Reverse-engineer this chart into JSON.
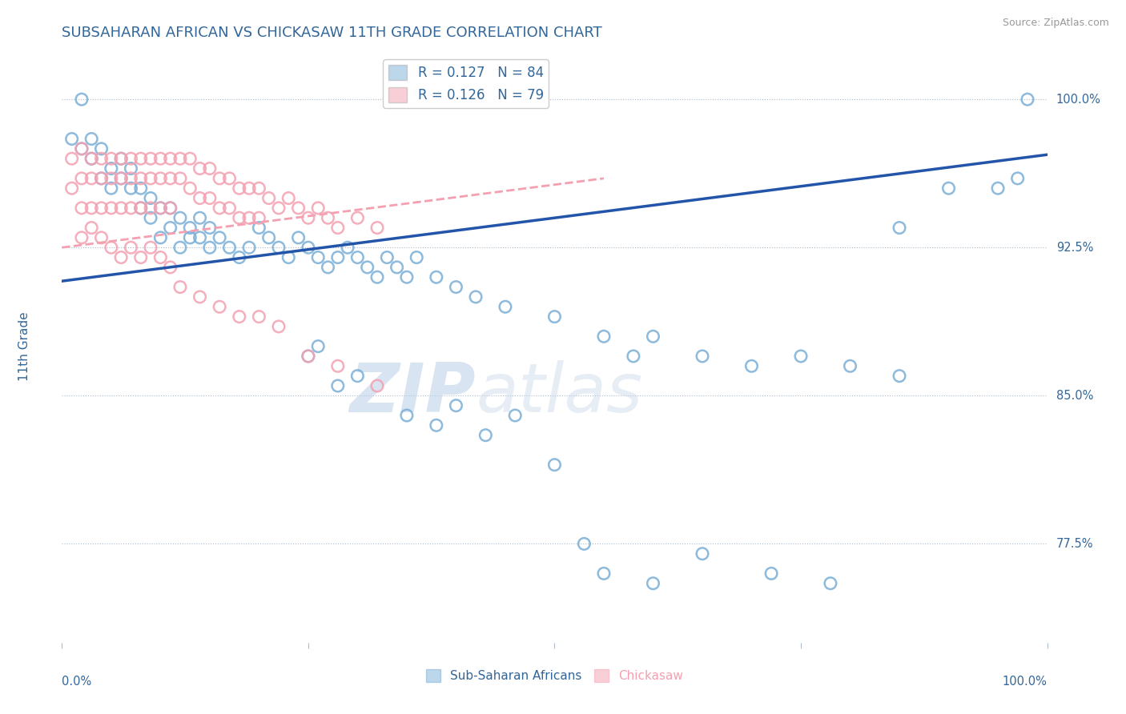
{
  "title": "SUBSAHARAN AFRICAN VS CHICKASAW 11TH GRADE CORRELATION CHART",
  "source": "Source: ZipAtlas.com",
  "ylabel": "11th Grade",
  "xlim": [
    0.0,
    1.0
  ],
  "ylim": [
    0.725,
    1.025
  ],
  "blue_color": "#7aaed6",
  "pink_color": "#f4a0b0",
  "title_color": "#336699",
  "watermark_zip": "ZIP",
  "watermark_atlas": "atlas",
  "blue_line": {
    "x0": 0.0,
    "y0": 0.908,
    "x1": 1.0,
    "y1": 0.972
  },
  "pink_line": {
    "x0": 0.0,
    "y0": 0.925,
    "x1": 0.55,
    "y1": 0.96
  },
  "ytick_positions": [
    1.0,
    0.925,
    0.85,
    0.775
  ],
  "ytick_labels": [
    "100.0%",
    "92.5%",
    "85.0%",
    "77.5%"
  ],
  "blue_scatter_x": [
    0.01,
    0.02,
    0.02,
    0.03,
    0.03,
    0.04,
    0.04,
    0.05,
    0.05,
    0.06,
    0.06,
    0.07,
    0.07,
    0.08,
    0.08,
    0.09,
    0.09,
    0.1,
    0.1,
    0.11,
    0.11,
    0.12,
    0.12,
    0.13,
    0.13,
    0.14,
    0.14,
    0.15,
    0.15,
    0.16,
    0.17,
    0.18,
    0.19,
    0.2,
    0.21,
    0.22,
    0.23,
    0.24,
    0.25,
    0.26,
    0.27,
    0.28,
    0.29,
    0.3,
    0.31,
    0.32,
    0.33,
    0.34,
    0.35,
    0.36,
    0.38,
    0.4,
    0.42,
    0.45,
    0.5,
    0.55,
    0.58,
    0.6,
    0.65,
    0.7,
    0.75,
    0.8,
    0.85,
    0.9,
    0.95,
    0.97,
    0.98,
    0.25,
    0.26,
    0.28,
    0.3,
    0.35,
    0.38,
    0.4,
    0.43,
    0.46,
    0.5,
    0.53,
    0.55,
    0.6,
    0.65,
    0.72,
    0.78,
    0.85
  ],
  "blue_scatter_y": [
    0.98,
    0.975,
    1.0,
    0.98,
    0.97,
    0.975,
    0.96,
    0.965,
    0.955,
    0.97,
    0.96,
    0.965,
    0.955,
    0.945,
    0.955,
    0.95,
    0.94,
    0.945,
    0.93,
    0.945,
    0.935,
    0.94,
    0.925,
    0.935,
    0.93,
    0.94,
    0.93,
    0.935,
    0.925,
    0.93,
    0.925,
    0.92,
    0.925,
    0.935,
    0.93,
    0.925,
    0.92,
    0.93,
    0.925,
    0.92,
    0.915,
    0.92,
    0.925,
    0.92,
    0.915,
    0.91,
    0.92,
    0.915,
    0.91,
    0.92,
    0.91,
    0.905,
    0.9,
    0.895,
    0.89,
    0.88,
    0.87,
    0.88,
    0.87,
    0.865,
    0.87,
    0.865,
    0.86,
    0.955,
    0.955,
    0.96,
    1.0,
    0.87,
    0.875,
    0.855,
    0.86,
    0.84,
    0.835,
    0.845,
    0.83,
    0.84,
    0.815,
    0.775,
    0.76,
    0.755,
    0.77,
    0.76,
    0.755,
    0.935
  ],
  "pink_scatter_x": [
    0.01,
    0.01,
    0.02,
    0.02,
    0.02,
    0.03,
    0.03,
    0.03,
    0.04,
    0.04,
    0.04,
    0.05,
    0.05,
    0.05,
    0.06,
    0.06,
    0.06,
    0.07,
    0.07,
    0.07,
    0.08,
    0.08,
    0.08,
    0.09,
    0.09,
    0.09,
    0.1,
    0.1,
    0.1,
    0.11,
    0.11,
    0.11,
    0.12,
    0.12,
    0.13,
    0.13,
    0.14,
    0.14,
    0.15,
    0.15,
    0.16,
    0.16,
    0.17,
    0.17,
    0.18,
    0.18,
    0.19,
    0.19,
    0.2,
    0.2,
    0.21,
    0.22,
    0.23,
    0.24,
    0.25,
    0.26,
    0.27,
    0.28,
    0.3,
    0.32,
    0.02,
    0.03,
    0.04,
    0.05,
    0.06,
    0.07,
    0.08,
    0.09,
    0.1,
    0.11,
    0.12,
    0.14,
    0.16,
    0.18,
    0.2,
    0.22,
    0.25,
    0.28,
    0.32
  ],
  "pink_scatter_y": [
    0.97,
    0.955,
    0.975,
    0.96,
    0.945,
    0.97,
    0.96,
    0.945,
    0.97,
    0.96,
    0.945,
    0.97,
    0.96,
    0.945,
    0.97,
    0.96,
    0.945,
    0.97,
    0.96,
    0.945,
    0.97,
    0.96,
    0.945,
    0.97,
    0.96,
    0.945,
    0.97,
    0.96,
    0.945,
    0.97,
    0.96,
    0.945,
    0.97,
    0.96,
    0.97,
    0.955,
    0.965,
    0.95,
    0.965,
    0.95,
    0.96,
    0.945,
    0.96,
    0.945,
    0.955,
    0.94,
    0.955,
    0.94,
    0.955,
    0.94,
    0.95,
    0.945,
    0.95,
    0.945,
    0.94,
    0.945,
    0.94,
    0.935,
    0.94,
    0.935,
    0.93,
    0.935,
    0.93,
    0.925,
    0.92,
    0.925,
    0.92,
    0.925,
    0.92,
    0.915,
    0.905,
    0.9,
    0.895,
    0.89,
    0.89,
    0.885,
    0.87,
    0.865,
    0.855
  ]
}
